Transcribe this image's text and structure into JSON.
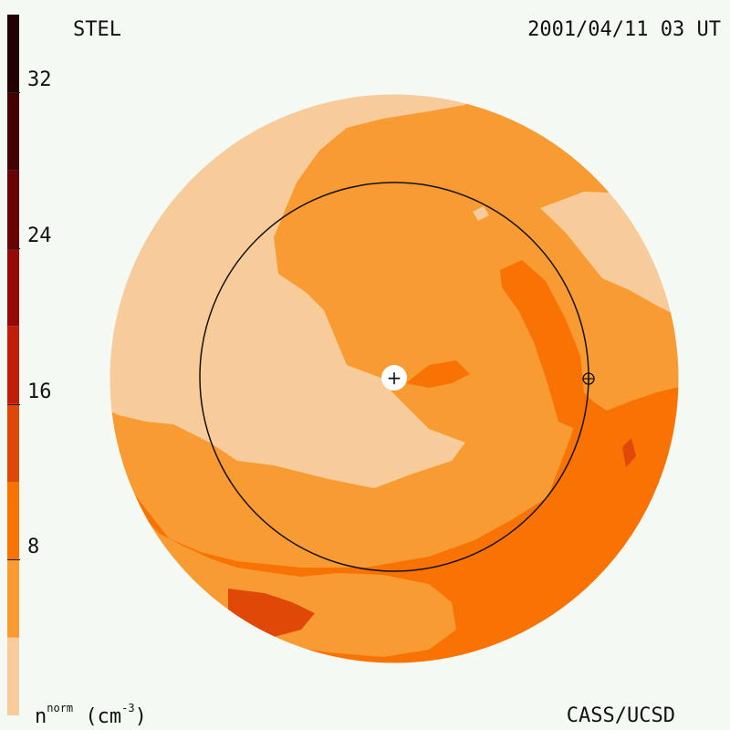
{
  "header": {
    "observatory": "STEL",
    "timestamp": "2001/04/11 03 UT"
  },
  "footer": {
    "credit": "CASS/UCSD"
  },
  "colorbar": {
    "quantity": "n",
    "quantity_superscript": "norm",
    "unit_open": "(cm",
    "unit_exponent": "-3",
    "unit_close": ")",
    "min": 0,
    "max": 36,
    "ticks": [
      {
        "value": 8,
        "label": "8"
      },
      {
        "value": 16,
        "label": "16"
      },
      {
        "value": 24,
        "label": "24"
      },
      {
        "value": 32,
        "label": "32"
      }
    ],
    "bands": [
      {
        "from": 0,
        "to": 4,
        "color": "#f8cc9a"
      },
      {
        "from": 4,
        "to": 8,
        "color": "#f89b32"
      },
      {
        "from": 8,
        "to": 12,
        "color": "#f87304"
      },
      {
        "from": 12,
        "to": 16,
        "color": "#e04808"
      },
      {
        "from": 16,
        "to": 20,
        "color": "#c01e0a"
      },
      {
        "from": 20,
        "to": 24,
        "color": "#960a06"
      },
      {
        "from": 24,
        "to": 28,
        "color": "#6a0404"
      },
      {
        "from": 28,
        "to": 32,
        "color": "#420202"
      },
      {
        "from": 32,
        "to": 36,
        "color": "#200000"
      }
    ]
  },
  "markers": {
    "sun_symbol": "+",
    "earth_symbol": "⊕"
  }
}
